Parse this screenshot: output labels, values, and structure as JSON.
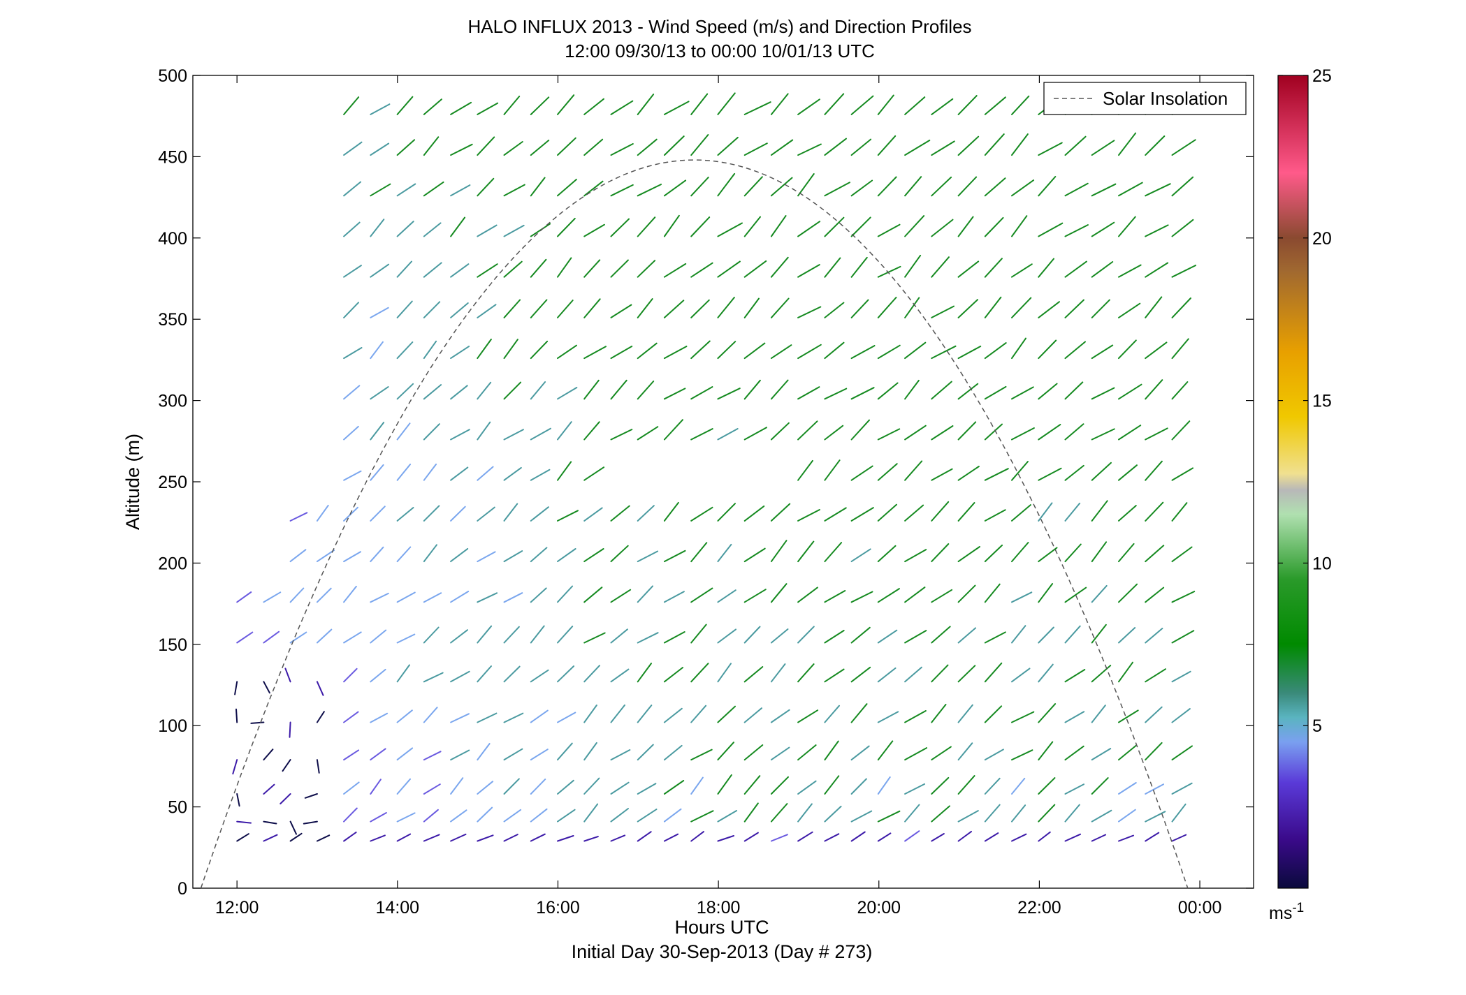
{
  "chart_data": {
    "type": "quiver",
    "title": "HALO INFLUX 2013 - Wind Speed (m/s) and Direction Profiles",
    "subtitle": "12:00 09/30/13 to 00:00 10/01/13  UTC",
    "xlabel": "Hours UTC",
    "xlabel2": "Initial Day 30-Sep-2013 (Day # 273)",
    "ylabel": "Altitude (m)",
    "x_ticks": [
      "12:00",
      "14:00",
      "16:00",
      "18:00",
      "20:00",
      "22:00",
      "00:00"
    ],
    "xlim": [
      11.45,
      24.67
    ],
    "y_ticks": [
      "0",
      "50",
      "100",
      "150",
      "200",
      "250",
      "300",
      "350",
      "400",
      "450",
      "500"
    ],
    "ylim": [
      0,
      500
    ],
    "colorbar": {
      "ticks": [
        "5",
        "10",
        "15",
        "20",
        "25"
      ],
      "range": [
        0,
        25
      ],
      "unit_label": "ms",
      "unit_exponent": "-1"
    },
    "legend": {
      "label": "Solar Insolation",
      "position": "top-right",
      "style": "dashed"
    },
    "solar_insolation_curve": {
      "start_hour": 11.55,
      "end_hour": 23.85,
      "peak_hour": 17.7,
      "peak_altitude": 448
    },
    "wind_field": {
      "altitudes_m": [
        29,
        41,
        58,
        79,
        102,
        127,
        151,
        176,
        201,
        226,
        251,
        276,
        301,
        326,
        351,
        376,
        401,
        426,
        451,
        476
      ],
      "hour_start": 12.0,
      "hour_step": 0.333,
      "hour_count": 36,
      "low_speed_ms": 3,
      "mid_speed_ms": 5,
      "high_speed_ms": 8,
      "direction_note": "southwest winds, vectors point toward the northeast"
    }
  }
}
